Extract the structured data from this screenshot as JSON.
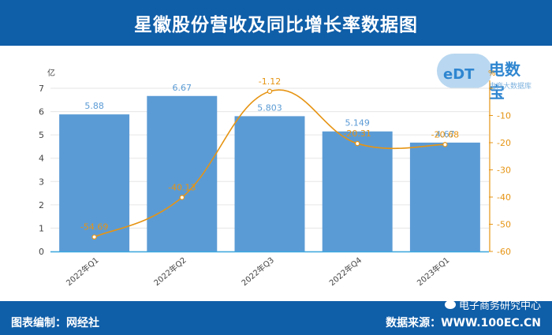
{
  "header": {
    "title": "星徽股份营收及同比增长率数据图"
  },
  "footer": {
    "left": "图表编制：网经社",
    "right": "数据来源：WWW.100EC.CN",
    "wechat": "电子商务研究中心"
  },
  "logo": {
    "mark": "eDT",
    "name": "电数宝",
    "sub": "电商大数据库"
  },
  "chart_data": {
    "type": "bar",
    "categories": [
      "2022年Q1",
      "2022年Q2",
      "2022年Q3",
      "2022年Q4",
      "2023年Q1"
    ],
    "series": [
      {
        "type": "bar",
        "axis": "left",
        "values": [
          5.88,
          6.67,
          5.803,
          5.149,
          4.67
        ],
        "labels": [
          "5.88",
          "6.67",
          "5.803",
          "5.149",
          "4.67"
        ]
      },
      {
        "type": "line",
        "axis": "right",
        "values": [
          -54.69,
          -40.13,
          -1.12,
          -20.31,
          -20.68
        ],
        "labels": [
          "-54.69",
          "-40.13",
          "-1.12",
          "-20.31",
          "-20.68"
        ]
      }
    ],
    "ylabel_left": "亿",
    "ylabel_right": "%",
    "ylim_left": [
      0,
      7
    ],
    "ylim_right": [
      -60,
      0
    ],
    "yticks_left": [
      0,
      1,
      2,
      3,
      4,
      5,
      6,
      7
    ],
    "yticks_right": [
      -60,
      -50,
      -40,
      -30,
      -20,
      -10,
      0
    ],
    "colors": {
      "bar": "#5b9bd5",
      "line": "#e69413",
      "bar_label": "#5b9bd5",
      "line_label": "#e69413",
      "grid": "#e6e6e6"
    },
    "grid": true
  }
}
